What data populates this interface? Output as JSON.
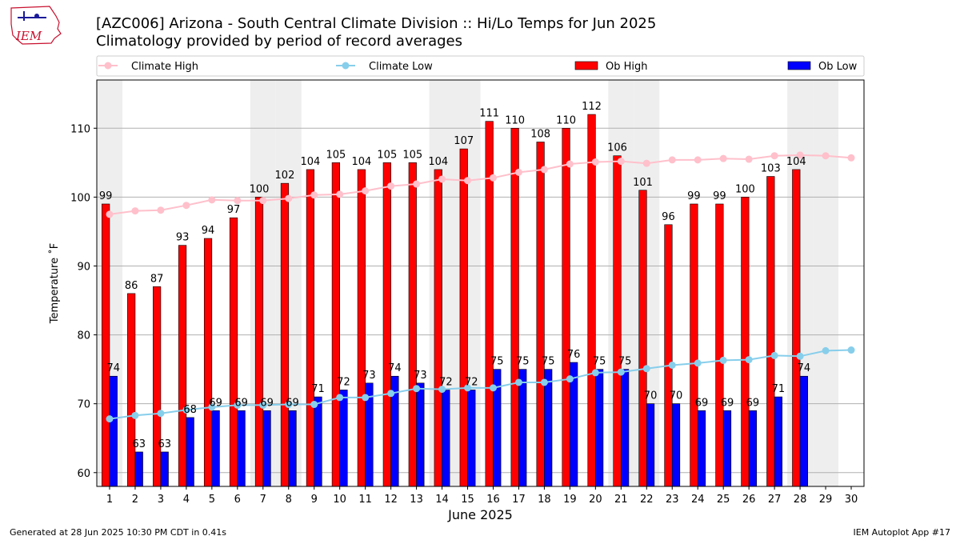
{
  "header": {
    "title": "[AZC006] Arizona - South Central Climate Division :: Hi/Lo Temps for Jun 2025",
    "subtitle": "Climatology provided by period of record averages",
    "logo_text": "IEM"
  },
  "footer": {
    "left": "Generated at 28 Jun 2025 10:30 PM CDT in 0.41s",
    "right": "IEM Autoplot App #17"
  },
  "legend": {
    "placement": "top",
    "items": [
      {
        "label": "Climate High",
        "kind": "line",
        "color": "#ffc0cb"
      },
      {
        "label": "Climate Low",
        "kind": "line",
        "color": "#87ceeb"
      },
      {
        "label": "Ob High",
        "kind": "bar",
        "color": "#ff0000"
      },
      {
        "label": "Ob Low",
        "kind": "bar",
        "color": "#0000ff"
      }
    ]
  },
  "chart_data": {
    "type": "bar",
    "title": "[AZC006] Arizona - South Central Climate Division :: Hi/Lo Temps for Jun 2025",
    "subtitle": "Climatology provided by period of record averages",
    "xlabel": "June 2025",
    "ylabel": "Temperature ˚F",
    "ylim": [
      58,
      117
    ],
    "xlim": [
      0.5,
      30.5
    ],
    "yticks": [
      60,
      70,
      80,
      90,
      100,
      110
    ],
    "categories": [
      "1",
      "2",
      "3",
      "4",
      "5",
      "6",
      "7",
      "8",
      "9",
      "10",
      "11",
      "12",
      "13",
      "14",
      "15",
      "16",
      "17",
      "18",
      "19",
      "20",
      "21",
      "22",
      "23",
      "24",
      "25",
      "26",
      "27",
      "28",
      "29",
      "30"
    ],
    "grid": "horizontal",
    "weekend_shading_days": [
      1,
      7,
      8,
      14,
      15,
      21,
      22,
      28,
      29
    ],
    "weekend_color": "#eeeeee",
    "series": [
      {
        "name": "Ob High",
        "kind": "bar",
        "color": "#ff0000",
        "values": [
          99,
          86,
          87,
          93,
          94,
          97,
          100,
          102,
          104,
          105,
          104,
          105,
          105,
          104,
          107,
          111,
          110,
          108,
          110,
          112,
          106,
          101,
          96,
          99,
          99,
          100,
          103,
          104,
          null,
          null
        ]
      },
      {
        "name": "Ob Low",
        "kind": "bar",
        "color": "#0000ff",
        "values": [
          74,
          63,
          63,
          68,
          69,
          69,
          69,
          69,
          71,
          72,
          73,
          74,
          73,
          72,
          72,
          75,
          75,
          75,
          76,
          75,
          75,
          70,
          70,
          69,
          69,
          69,
          71,
          74,
          null,
          null
        ]
      },
      {
        "name": "Climate High",
        "kind": "line",
        "color": "#ffc0cb",
        "values": [
          97.5,
          98.0,
          98.1,
          98.8,
          99.6,
          99.5,
          99.5,
          99.8,
          100.3,
          100.4,
          100.9,
          101.6,
          101.9,
          102.6,
          102.4,
          102.8,
          103.6,
          104.0,
          104.8,
          105.1,
          105.2,
          104.9,
          105.4,
          105.4,
          105.6,
          105.5,
          106.0,
          106.1,
          106.0,
          105.7
        ]
      },
      {
        "name": "Climate Low",
        "kind": "line",
        "color": "#87ceeb",
        "values": [
          67.8,
          68.3,
          68.6,
          69.1,
          69.5,
          69.8,
          69.8,
          69.9,
          69.9,
          70.9,
          70.9,
          71.5,
          72.2,
          72.1,
          72.3,
          72.3,
          73.1,
          73.1,
          73.6,
          74.5,
          74.6,
          75.1,
          75.6,
          75.9,
          76.3,
          76.4,
          77.0,
          76.9,
          77.7,
          77.8
        ]
      }
    ]
  }
}
